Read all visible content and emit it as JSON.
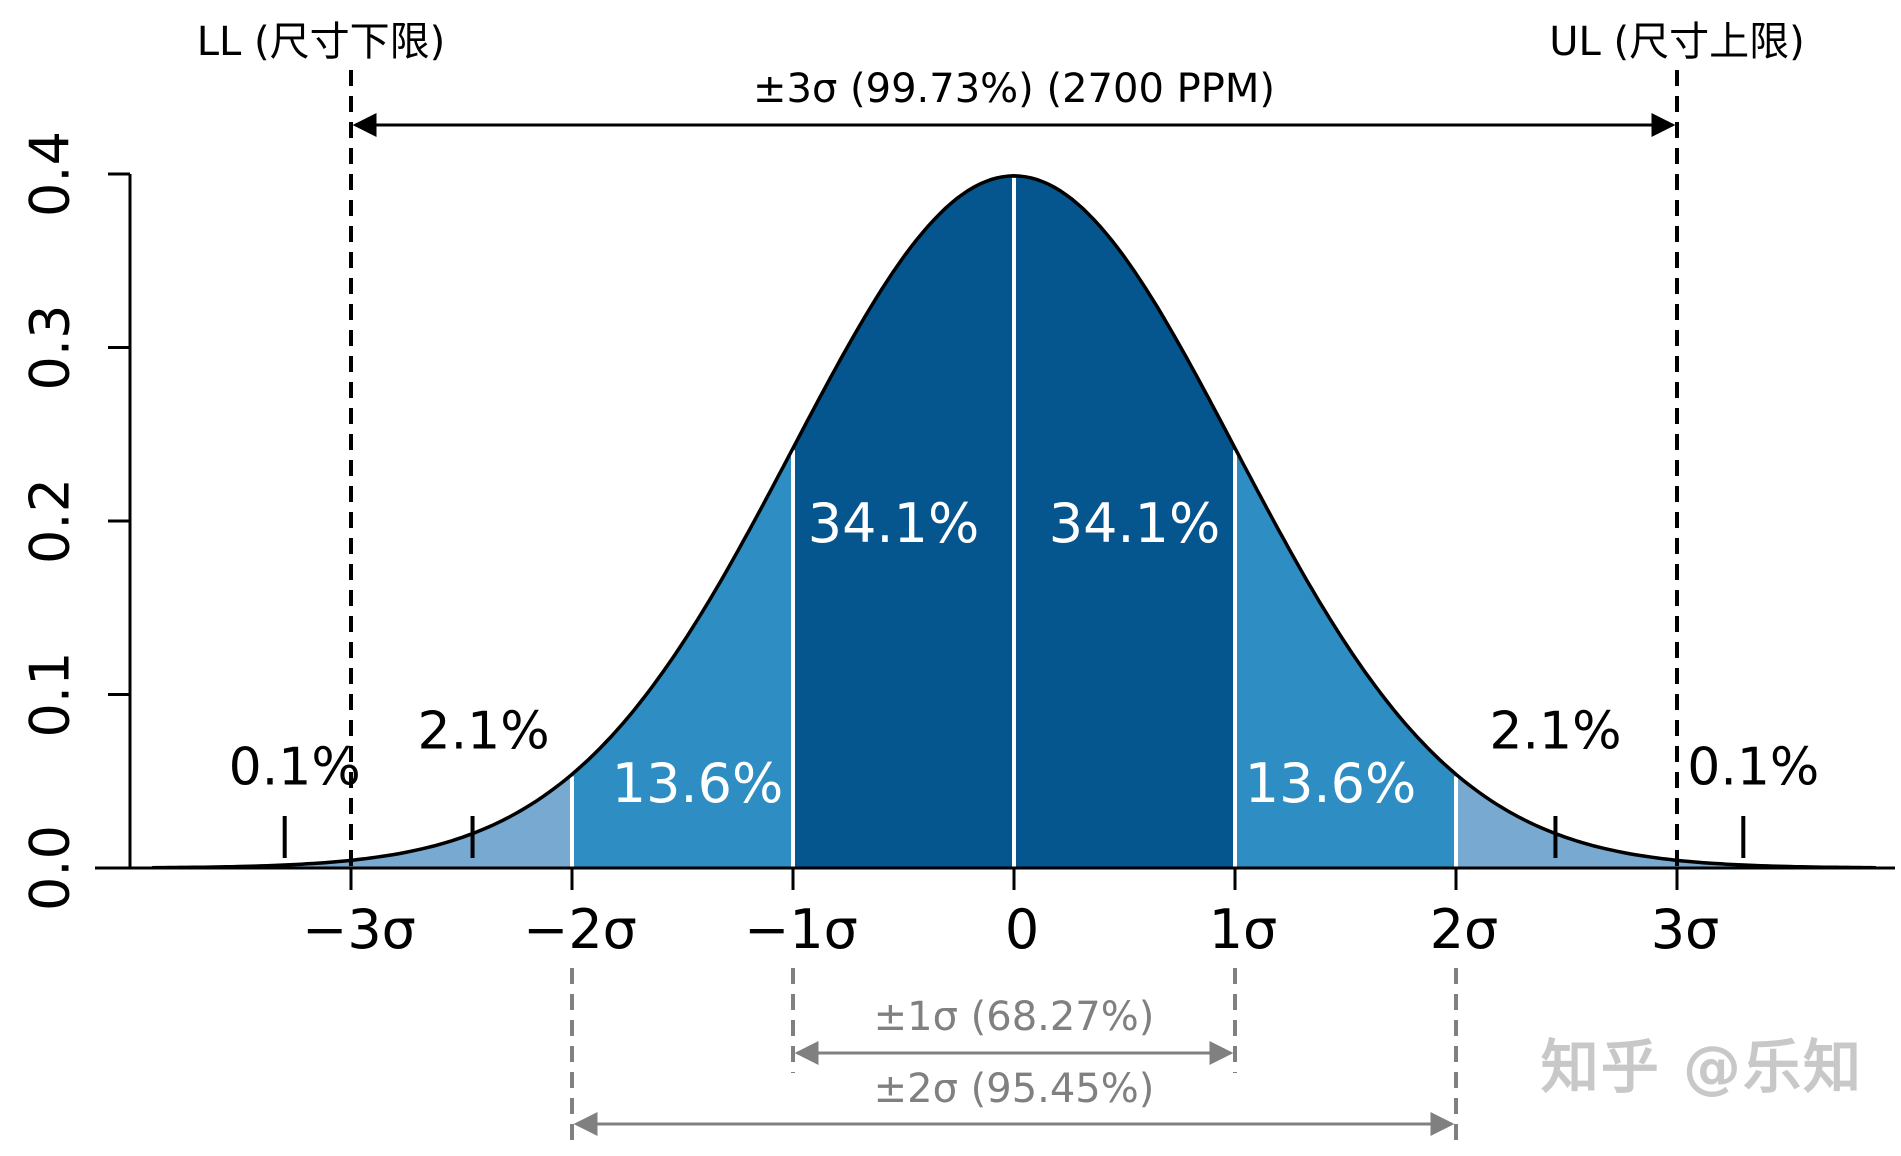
{
  "chart_data": {
    "type": "area",
    "title": "",
    "x_range": [
      -3.9,
      3.9
    ],
    "ylim": [
      0,
      0.4
    ],
    "y_ticks": [
      {
        "value": 0.0,
        "label": "0.0"
      },
      {
        "value": 0.1,
        "label": "0.1"
      },
      {
        "value": 0.2,
        "label": "0.2"
      },
      {
        "value": 0.3,
        "label": "0.3"
      },
      {
        "value": 0.4,
        "label": "0.4"
      }
    ],
    "x_ticks": [
      {
        "value": -3,
        "label": "−3σ"
      },
      {
        "value": -2,
        "label": "−2σ"
      },
      {
        "value": -1,
        "label": "−1σ"
      },
      {
        "value": 0,
        "label": "0"
      },
      {
        "value": 1,
        "label": "1σ"
      },
      {
        "value": 2,
        "label": "2σ"
      },
      {
        "value": 3,
        "label": "3σ"
      }
    ],
    "bands": [
      {
        "from": -3,
        "to": -2,
        "label": "2.1%",
        "value": 2.1,
        "color": "#78a9d1",
        "label_inside": false
      },
      {
        "from": -2,
        "to": -1,
        "label": "13.6%",
        "value": 13.6,
        "color": "#2e8dc2",
        "label_inside": true
      },
      {
        "from": -1,
        "to": 0,
        "label": "34.1%",
        "value": 34.1,
        "color": "#05558f",
        "label_inside": true
      },
      {
        "from": 0,
        "to": 1,
        "label": "34.1%",
        "value": 34.1,
        "color": "#05558f",
        "label_inside": true
      },
      {
        "from": 1,
        "to": 2,
        "label": "13.6%",
        "value": 13.6,
        "color": "#2e8dc2",
        "label_inside": true
      },
      {
        "from": 2,
        "to": 3,
        "label": "2.1%",
        "value": 2.1,
        "color": "#78a9d1",
        "label_inside": false
      }
    ],
    "tails": [
      {
        "side": "left",
        "label": "0.1%",
        "value": 0.1,
        "color": "#78a9d1",
        "marker_x": -3.3
      },
      {
        "side": "right",
        "label": "0.1%",
        "value": 0.1,
        "color": "#78a9d1",
        "marker_x": 3.3
      }
    ],
    "outer_band_markers": [
      -2.45,
      2.45
    ],
    "limits": [
      {
        "x": -3,
        "label": "LL (尺寸下限)"
      },
      {
        "x": 3,
        "label": "UL (尺寸上限)"
      }
    ],
    "spans": [
      {
        "from": -3,
        "to": 3,
        "label": "±3σ (99.73%) (2700 PPM)",
        "color": "#000000",
        "position": "top"
      },
      {
        "from": -1,
        "to": 1,
        "label": "±1σ (68.27%)",
        "color": "#808080",
        "position": "bottom"
      },
      {
        "from": -2,
        "to": 2,
        "label": "±2σ (95.45%)",
        "color": "#808080",
        "position": "bottom"
      }
    ]
  },
  "watermark": "知乎 @乐知"
}
